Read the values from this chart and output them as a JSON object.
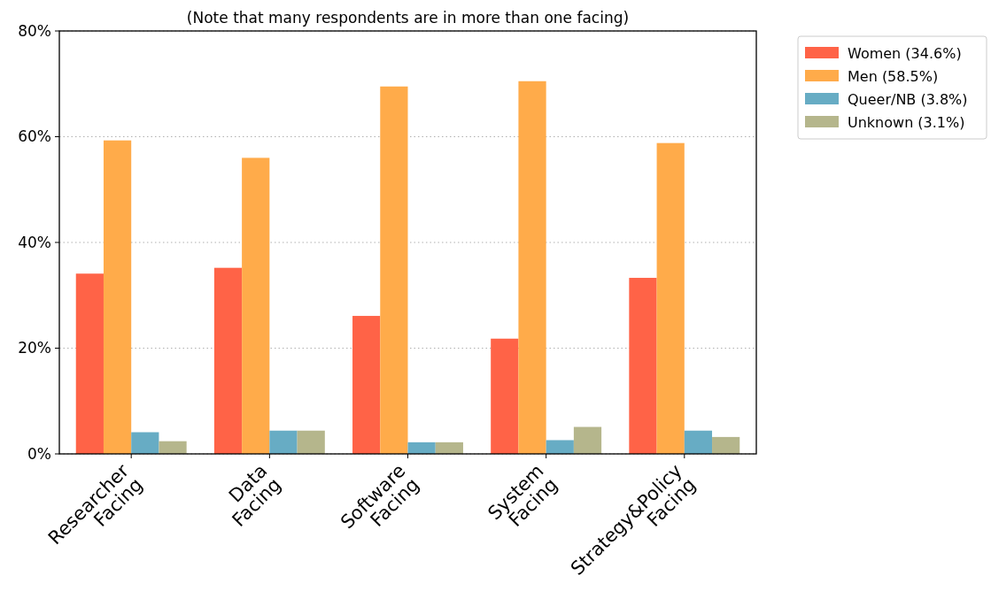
{
  "chart_data": {
    "type": "bar",
    "title": "(Note that many respondents are in more than one facing)",
    "categories": [
      "Researcher\nFacing",
      "Data\nFacing",
      "Software\nFacing",
      "System\nFacing",
      "Strategy&Policy\nFacing"
    ],
    "series": [
      {
        "name": "Women (34.6%)",
        "color": "#ff6347",
        "values": [
          34.1,
          35.2,
          26.1,
          21.8,
          33.3
        ]
      },
      {
        "name": "Men (58.5%)",
        "color": "#ffab4a",
        "values": [
          59.3,
          56.0,
          69.5,
          70.5,
          58.8
        ]
      },
      {
        "name": "Queer/NB (3.8%)",
        "color": "#67acc4",
        "values": [
          4.1,
          4.4,
          2.2,
          2.6,
          4.4
        ]
      },
      {
        "name": "Unknown (3.1%)",
        "color": "#b5b68c",
        "values": [
          2.4,
          4.4,
          2.2,
          5.1,
          3.2
        ]
      }
    ],
    "ylim": [
      0,
      80
    ],
    "yticks": [
      {
        "value": 0,
        "label": "0%"
      },
      {
        "value": 20,
        "label": "20%"
      },
      {
        "value": 40,
        "label": "40%"
      },
      {
        "value": 60,
        "label": "60%"
      },
      {
        "value": 80,
        "label": "80%"
      }
    ],
    "grid": "y",
    "legend": "top right"
  }
}
